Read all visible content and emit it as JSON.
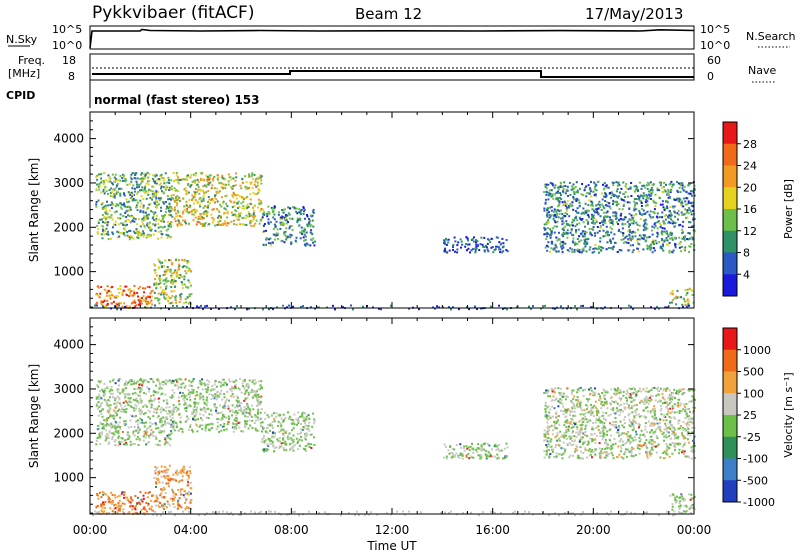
{
  "header": {
    "station": "Pykkvibaer (fitACF)",
    "beam": "Beam 12",
    "date": "17/May/2013"
  },
  "strips": {
    "nsky_label": "N.Sky",
    "nsky_top": "10^5",
    "nsky_bottom": "10^0",
    "nsearch_label": "N.Search",
    "nsearch_top": "10^5",
    "nsearch_bottom": "10^0",
    "freq_label": "Freq.",
    "freq_unit": "[MHz]",
    "freq_top": "18",
    "freq_bottom": "8",
    "nave_label": "Nave",
    "nave_top": "60",
    "nave_bottom": "0",
    "cpid_label": "CPID",
    "cpid_text": "normal (fast stereo) 153"
  },
  "chart_data": [
    {
      "type": "heatmap",
      "panel": "power",
      "ylabel": "Slant Range [km]",
      "xlabel": "",
      "ylim": [
        180,
        4600
      ],
      "xlim_hours": [
        0,
        24
      ],
      "yticks": [
        1000,
        2000,
        3000,
        4000
      ],
      "colorbar": {
        "label": "Power [dB]",
        "ticks": [
          "4",
          "8",
          "12",
          "16",
          "20",
          "24",
          "28"
        ],
        "colors": [
          "#1a1adc",
          "#2a58c4",
          "#2f9168",
          "#6cc04a",
          "#e4d21e",
          "#f29a22",
          "#f06a1a",
          "#e81818"
        ]
      },
      "regions": [
        {
          "t": [
            0.2,
            3.2
          ],
          "r": [
            1750,
            3250
          ],
          "level": 0.4
        },
        {
          "t": [
            3.2,
            6.8
          ],
          "r": [
            2050,
            3250
          ],
          "level": 0.55
        },
        {
          "t": [
            6.8,
            8.9
          ],
          "r": [
            1600,
            2500
          ],
          "level": 0.3
        },
        {
          "t": [
            0.2,
            2.5
          ],
          "r": [
            200,
            700
          ],
          "level": 0.75
        },
        {
          "t": [
            2.5,
            4.0
          ],
          "r": [
            300,
            1300
          ],
          "level": 0.5
        },
        {
          "t": [
            14.0,
            16.6
          ],
          "r": [
            1450,
            1800
          ],
          "level": 0.15
        },
        {
          "t": [
            18.0,
            24.0
          ],
          "r": [
            1450,
            3050
          ],
          "level": 0.3
        },
        {
          "t": [
            23.0,
            24.0
          ],
          "r": [
            250,
            650
          ],
          "level": 0.45
        }
      ]
    },
    {
      "type": "heatmap",
      "panel": "velocity",
      "ylabel": "Slant Range [km]",
      "xlabel": "Time UT",
      "ylim": [
        180,
        4600
      ],
      "xlim_hours": [
        0,
        24
      ],
      "yticks": [
        1000,
        2000,
        3000,
        4000
      ],
      "xticks": [
        "00:00",
        "04:00",
        "08:00",
        "12:00",
        "16:00",
        "20:00",
        "00:00"
      ],
      "colorbar": {
        "label": "Velocity [m s⁻¹]",
        "ticks": [
          "1000",
          "500",
          "100",
          "25",
          "-25",
          "-100",
          "-500",
          "-1000"
        ],
        "colors": [
          "#1f3fbf",
          "#3c7fc8",
          "#2f9158",
          "#6cc04a",
          "#c8c8c0",
          "#f2a23a",
          "#f06a1a",
          "#e81818"
        ]
      },
      "regions": [
        {
          "t": [
            0.2,
            3.2
          ],
          "r": [
            1750,
            3250
          ],
          "level": 0.5
        },
        {
          "t": [
            3.2,
            6.8
          ],
          "r": [
            2050,
            3250
          ],
          "level": 0.5
        },
        {
          "t": [
            6.8,
            8.9
          ],
          "r": [
            1600,
            2500
          ],
          "level": 0.5
        },
        {
          "t": [
            0.2,
            2.5
          ],
          "r": [
            200,
            700
          ],
          "level": 0.78
        },
        {
          "t": [
            2.5,
            4.0
          ],
          "r": [
            300,
            1300
          ],
          "level": 0.7
        },
        {
          "t": [
            14.0,
            16.6
          ],
          "r": [
            1450,
            1800
          ],
          "level": 0.5
        },
        {
          "t": [
            18.0,
            24.0
          ],
          "r": [
            1450,
            3050
          ],
          "level": 0.52
        },
        {
          "t": [
            23.0,
            24.0
          ],
          "r": [
            250,
            650
          ],
          "level": 0.5
        }
      ]
    }
  ]
}
